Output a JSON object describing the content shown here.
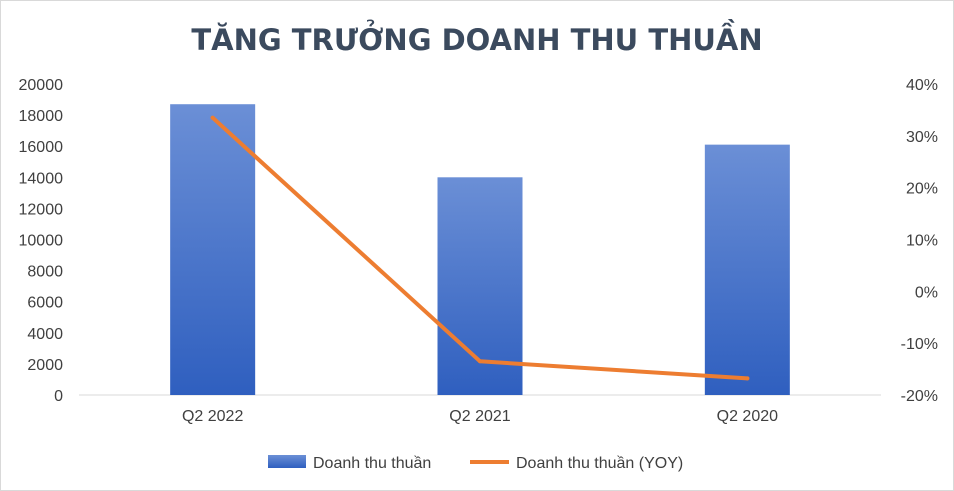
{
  "chart_data": {
    "type": "bar",
    "title": "TĂNG TRƯỞNG DOANH THU THUẦN",
    "categories": [
      "Q2 2022",
      "Q2 2021",
      "Q2 2020"
    ],
    "series": [
      {
        "name": "Doanh thu thuần",
        "type": "bar",
        "axis": "left",
        "values": [
          18700,
          14000,
          16100
        ]
      },
      {
        "name": "Doanh thu thuần (YOY)",
        "type": "line",
        "axis": "right",
        "values": [
          0.335,
          -0.135,
          -0.168
        ]
      }
    ],
    "ylim": [
      0,
      20000
    ],
    "y_ticks": [
      "0",
      "2000",
      "4000",
      "6000",
      "8000",
      "10000",
      "12000",
      "14000",
      "16000",
      "18000",
      "20000"
    ],
    "y2lim": [
      -0.2,
      0.4
    ],
    "y2_ticks": [
      "-20%",
      "-10%",
      "0%",
      "10%",
      "20%",
      "30%",
      "40%"
    ],
    "legend_position": "bottom",
    "grid": false,
    "colors": {
      "bar_top": "#6b8fd6",
      "bar_bottom": "#2f5fbf",
      "line": "#ed7d31",
      "title": "#3b4a5e",
      "text": "#404040",
      "axis": "#d9d9d9"
    }
  }
}
